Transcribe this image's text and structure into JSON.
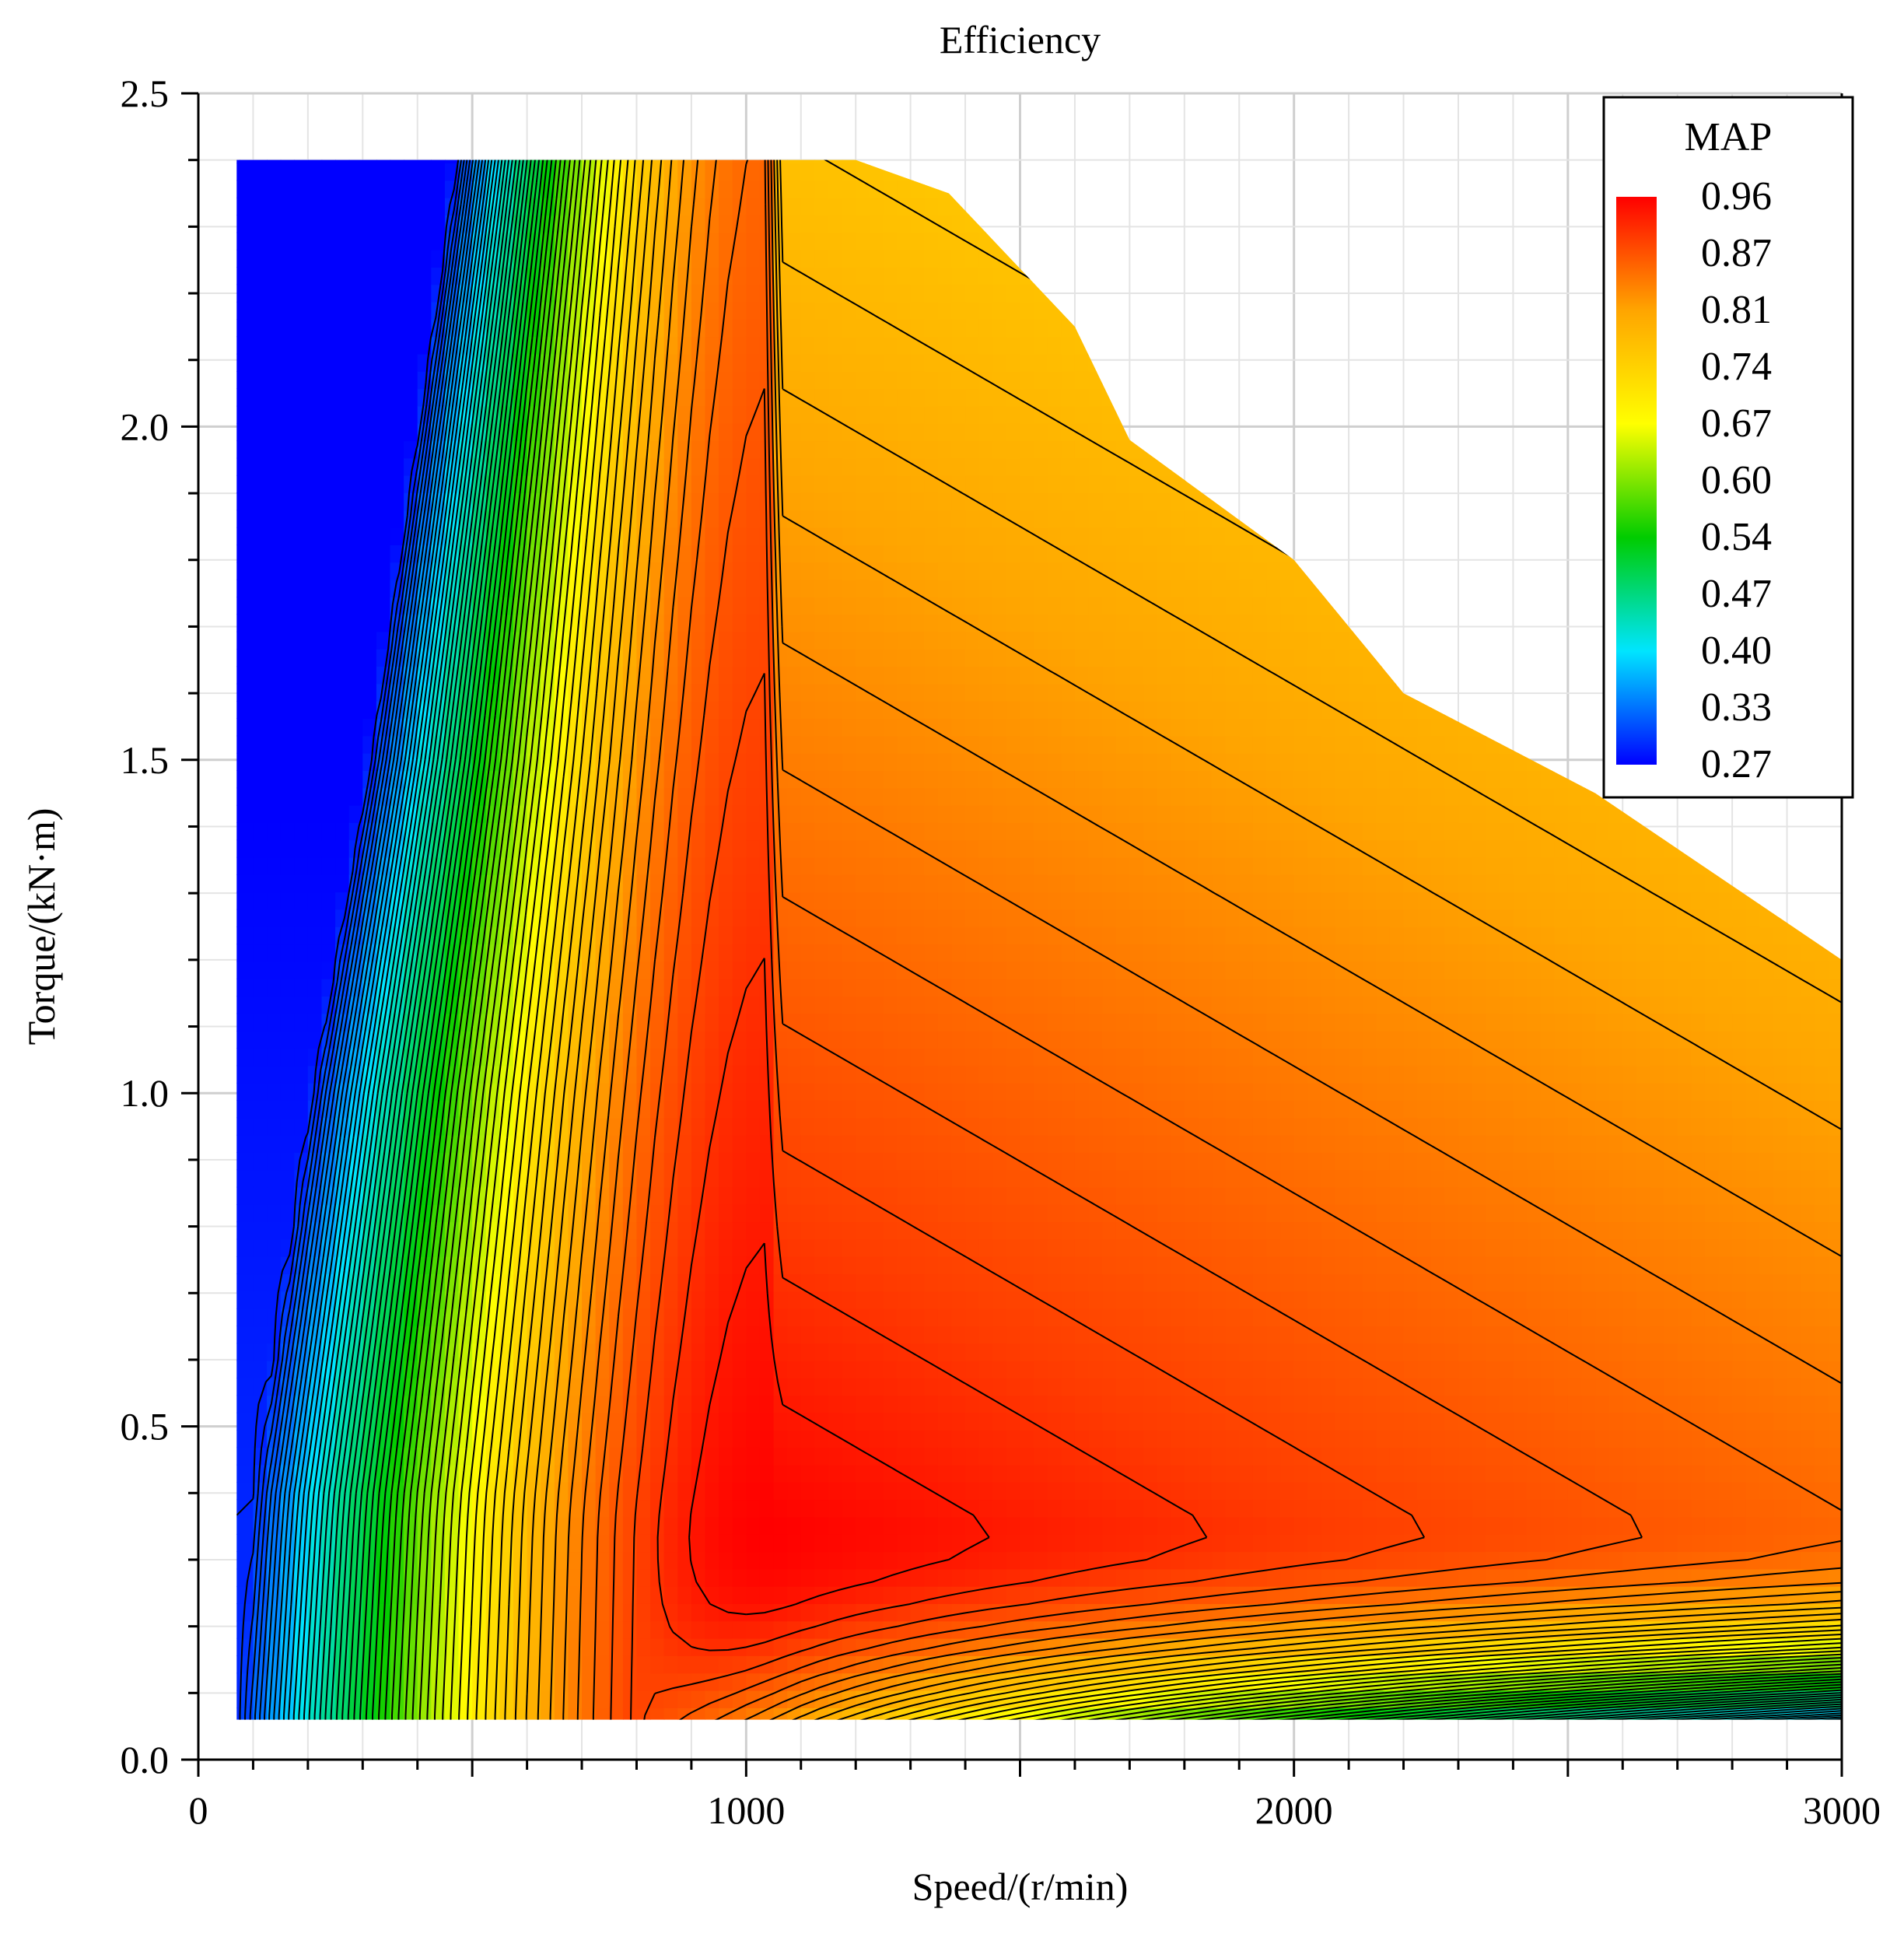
{
  "chart_data": {
    "type": "heatmap",
    "subtype": "filled-contour efficiency map",
    "title": "Efficiency",
    "xlabel": "Speed/(r/min)",
    "ylabel": "Torque/(kN·m)",
    "xlim": [
      0,
      3000
    ],
    "ylim": [
      0,
      2.5
    ],
    "x_ticks": [
      0,
      1000,
      2000,
      3000
    ],
    "x_tick_labels": [
      "0",
      "1000",
      "2000",
      "3000"
    ],
    "y_ticks": [
      0,
      0.5,
      1.0,
      1.5,
      2.0,
      2.5
    ],
    "y_tick_labels": [
      "0.0",
      "0.5",
      "1.0",
      "1.5",
      "2.0",
      "2.5"
    ],
    "grid": true,
    "legend": {
      "title": "MAP",
      "position": "top-right",
      "levels": [
        0.96,
        0.87,
        0.81,
        0.74,
        0.67,
        0.6,
        0.54,
        0.47,
        0.4,
        0.33,
        0.27
      ],
      "level_labels": [
        "0.96",
        "0.87",
        "0.81",
        "0.74",
        "0.67",
        "0.60",
        "0.54",
        "0.47",
        "0.40",
        "0.33",
        "0.27"
      ]
    },
    "colormap": [
      "#0000ff",
      "#00e5ff",
      "#00cc00",
      "#ffff00",
      "#ffa500",
      "#ff0000"
    ],
    "operating_region": {
      "speed_min": 70,
      "torque_min": 0.06,
      "torque_max": 2.4,
      "max_torque_envelope": {
        "speed": [
          70,
          1200,
          1370,
          1600,
          1700,
          2000,
          2200,
          2550,
          3000
        ],
        "torque": [
          2.4,
          2.4,
          2.35,
          2.15,
          1.98,
          1.8,
          1.6,
          1.45,
          1.2
        ]
      }
    },
    "peak_efficiency": {
      "speed": 1050,
      "torque": 0.35,
      "value": 0.96
    },
    "efficiency_model": {
      "inner_boundary_speed_at_torque": {
        "torque": [
          0.06,
          0.4,
          1.0,
          1.5,
          2.4
        ],
        "speed": [
          70,
          100,
          200,
          300,
          450
        ]
      },
      "inner_boundary_efficiency": 0.3,
      "low_torque_boundary_efficiency": 0.5
    }
  }
}
